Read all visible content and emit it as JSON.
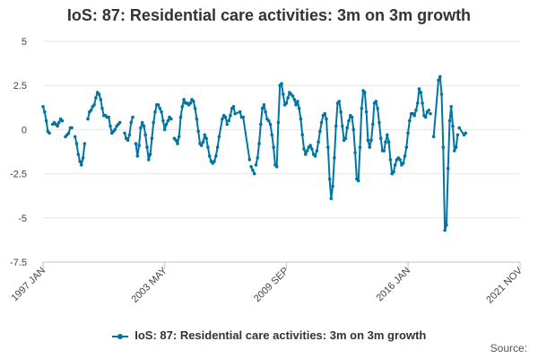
{
  "chart_data": {
    "type": "line",
    "title": "IoS: 87: Residential care activities: 3m on 3m growth",
    "xlabel": "",
    "ylabel": "",
    "ylim": [
      -7.5,
      5
    ],
    "y_ticks": [
      "5",
      "2.5",
      "0",
      "-2.5",
      "-5",
      "-7.5"
    ],
    "y_tick_values": [
      5,
      2.5,
      0,
      -2.5,
      -5,
      -7.5
    ],
    "x_ticks": [
      "1997 JAN",
      "2003 MAY",
      "2009 SEP",
      "2016 JAN",
      "2021 NOV"
    ],
    "x_tick_values": [
      1997.0,
      2003.333,
      2009.667,
      2016.0,
      2021.833
    ],
    "xlim": [
      1997.0,
      2021.833
    ],
    "grid": true,
    "legend": "bottom-center",
    "series": [
      {
        "name": "IoS: 87: Residential care activities: 3m on 3m growth",
        "color": "#0075a3",
        "points": [
          [
            1997.0,
            1.3
          ],
          [
            1997.083,
            1.0
          ],
          [
            1997.167,
            0.5
          ],
          [
            1997.25,
            -0.1
          ],
          [
            1997.333,
            -0.2
          ],
          [
            1997.5,
            0.3
          ],
          [
            1997.583,
            0.4
          ],
          [
            1997.667,
            0.3
          ],
          [
            1997.75,
            0.2
          ],
          [
            1997.833,
            0.4
          ],
          [
            1997.917,
            0.6
          ],
          [
            1998.0,
            0.5
          ],
          [
            1998.167,
            -0.4
          ],
          [
            1998.25,
            -0.3
          ],
          [
            1998.333,
            -0.2
          ],
          [
            1998.417,
            0.1
          ],
          [
            1998.5,
            0.1
          ],
          [
            1998.667,
            -0.4
          ],
          [
            1998.75,
            -0.8
          ],
          [
            1998.833,
            -1.4
          ],
          [
            1998.917,
            -1.8
          ],
          [
            1999.0,
            -2.0
          ],
          [
            1999.083,
            -1.6
          ],
          [
            1999.167,
            -0.8
          ],
          [
            1999.333,
            0.6
          ],
          [
            1999.417,
            1.0
          ],
          [
            1999.5,
            1.1
          ],
          [
            1999.583,
            1.3
          ],
          [
            1999.667,
            1.4
          ],
          [
            1999.75,
            1.8
          ],
          [
            1999.833,
            2.1
          ],
          [
            1999.917,
            2.0
          ],
          [
            2000.0,
            1.7
          ],
          [
            2000.083,
            1.2
          ],
          [
            2000.167,
            0.8
          ],
          [
            2000.25,
            0.8
          ],
          [
            2000.333,
            0.7
          ],
          [
            2000.417,
            0.7
          ],
          [
            2000.5,
            0.2
          ],
          [
            2000.583,
            -0.2
          ],
          [
            2000.667,
            -0.1
          ],
          [
            2000.75,
            0.0
          ],
          [
            2000.833,
            0.2
          ],
          [
            2000.917,
            0.3
          ],
          [
            2001.0,
            0.4
          ],
          [
            2001.25,
            -0.2
          ],
          [
            2001.333,
            -0.5
          ],
          [
            2001.417,
            -0.6
          ],
          [
            2001.5,
            -0.3
          ],
          [
            2001.583,
            0.4
          ],
          [
            2001.667,
            0.7
          ],
          [
            2001.833,
            -0.8
          ],
          [
            2001.917,
            -1.5
          ],
          [
            2002.0,
            -0.9
          ],
          [
            2002.083,
            0.1
          ],
          [
            2002.167,
            0.4
          ],
          [
            2002.25,
            0.2
          ],
          [
            2002.333,
            -0.3
          ],
          [
            2002.417,
            -1.0
          ],
          [
            2002.5,
            -1.7
          ],
          [
            2002.583,
            -1.4
          ],
          [
            2002.667,
            -0.5
          ],
          [
            2002.75,
            0.4
          ],
          [
            2002.833,
            1.0
          ],
          [
            2002.917,
            1.4
          ],
          [
            2003.0,
            1.4
          ],
          [
            2003.083,
            1.2
          ],
          [
            2003.167,
            1.0
          ],
          [
            2003.25,
            0.5
          ],
          [
            2003.333,
            0.0
          ],
          [
            2003.417,
            0.3
          ],
          [
            2003.5,
            0.5
          ],
          [
            2003.583,
            0.7
          ],
          [
            2003.667,
            0.6
          ],
          [
            2003.833,
            -0.5
          ],
          [
            2003.917,
            -0.6
          ],
          [
            2004.0,
            -0.8
          ],
          [
            2004.083,
            -0.4
          ],
          [
            2004.167,
            0.7
          ],
          [
            2004.25,
            1.3
          ],
          [
            2004.333,
            1.7
          ],
          [
            2004.417,
            1.5
          ],
          [
            2004.5,
            1.5
          ],
          [
            2004.583,
            1.4
          ],
          [
            2004.667,
            1.5
          ],
          [
            2004.75,
            1.7
          ],
          [
            2004.833,
            1.6
          ],
          [
            2004.917,
            1.2
          ],
          [
            2005.0,
            0.6
          ],
          [
            2005.083,
            -0.1
          ],
          [
            2005.167,
            -0.8
          ],
          [
            2005.25,
            -0.9
          ],
          [
            2005.333,
            -0.7
          ],
          [
            2005.417,
            -0.3
          ],
          [
            2005.5,
            -0.5
          ],
          [
            2005.583,
            -1.0
          ],
          [
            2005.667,
            -1.5
          ],
          [
            2005.75,
            -1.8
          ],
          [
            2005.833,
            -1.9
          ],
          [
            2005.917,
            -1.8
          ],
          [
            2006.0,
            -1.5
          ],
          [
            2006.083,
            -1.0
          ],
          [
            2006.167,
            -0.4
          ],
          [
            2006.333,
            0.6
          ],
          [
            2006.417,
            0.8
          ],
          [
            2006.5,
            0.7
          ],
          [
            2006.583,
            0.3
          ],
          [
            2006.667,
            0.5
          ],
          [
            2006.75,
            0.8
          ],
          [
            2006.833,
            1.2
          ],
          [
            2006.917,
            1.3
          ],
          [
            2007.0,
            0.9
          ],
          [
            2007.25,
            1.0
          ],
          [
            2007.333,
            0.7
          ],
          [
            2007.417,
            0.7
          ],
          [
            2007.75,
            -1.7
          ],
          [
            2007.833,
            -2.1
          ],
          [
            2007.917,
            -2.3
          ],
          [
            2008.0,
            -2.5
          ],
          [
            2008.083,
            -2.0
          ],
          [
            2008.167,
            -1.6
          ],
          [
            2008.25,
            -0.8
          ],
          [
            2008.333,
            0.3
          ],
          [
            2008.417,
            1.2
          ],
          [
            2008.5,
            1.4
          ],
          [
            2008.583,
            1.0
          ],
          [
            2008.667,
            0.6
          ],
          [
            2008.75,
            0.5
          ],
          [
            2008.833,
            0.3
          ],
          [
            2008.917,
            -0.3
          ],
          [
            2009.0,
            -1.0
          ],
          [
            2009.083,
            -2.0
          ],
          [
            2009.167,
            -2.1
          ],
          [
            2009.25,
            0.4
          ],
          [
            2009.333,
            2.5
          ],
          [
            2009.417,
            2.6
          ],
          [
            2009.5,
            2.0
          ],
          [
            2009.583,
            1.4
          ],
          [
            2009.667,
            1.5
          ],
          [
            2009.75,
            1.8
          ],
          [
            2009.833,
            2.1
          ],
          [
            2009.917,
            2.0
          ],
          [
            2010.0,
            1.9
          ],
          [
            2010.083,
            1.7
          ],
          [
            2010.167,
            1.4
          ],
          [
            2010.25,
            1.6
          ],
          [
            2010.333,
            1.2
          ],
          [
            2010.417,
            0.6
          ],
          [
            2010.5,
            -0.3
          ],
          [
            2010.583,
            -1.1
          ],
          [
            2010.667,
            -1.4
          ],
          [
            2010.75,
            -1.2
          ],
          [
            2010.833,
            -1.0
          ],
          [
            2010.917,
            -0.9
          ],
          [
            2011.0,
            -1.1
          ],
          [
            2011.083,
            -1.4
          ],
          [
            2011.167,
            -1.5
          ],
          [
            2011.25,
            -1.2
          ],
          [
            2011.333,
            -0.7
          ],
          [
            2011.417,
            -0.1
          ],
          [
            2011.5,
            0.4
          ],
          [
            2011.583,
            0.8
          ],
          [
            2011.667,
            0.9
          ],
          [
            2011.75,
            0.6
          ],
          [
            2011.833,
            -1.0
          ],
          [
            2011.917,
            -2.8
          ],
          [
            2012.0,
            -3.9
          ],
          [
            2012.083,
            -3.2
          ],
          [
            2012.167,
            -1.6
          ],
          [
            2012.25,
            0.2
          ],
          [
            2012.333,
            1.5
          ],
          [
            2012.417,
            1.6
          ],
          [
            2012.5,
            1.0
          ],
          [
            2012.583,
            0.2
          ],
          [
            2012.667,
            -0.6
          ],
          [
            2012.75,
            -0.5
          ],
          [
            2012.833,
            0.1
          ],
          [
            2012.917,
            0.5
          ],
          [
            2013.0,
            0.8
          ],
          [
            2013.083,
            0.7
          ],
          [
            2013.167,
            0.0
          ],
          [
            2013.25,
            -1.3
          ],
          [
            2013.333,
            -2.8
          ],
          [
            2013.417,
            -2.9
          ],
          [
            2013.5,
            -1.0
          ],
          [
            2013.583,
            1.2
          ],
          [
            2013.667,
            2.2
          ],
          [
            2013.75,
            2.1
          ],
          [
            2013.833,
            1.0
          ],
          [
            2013.917,
            -0.6
          ],
          [
            2014.0,
            -1.0
          ],
          [
            2014.083,
            -0.6
          ],
          [
            2014.167,
            0.3
          ],
          [
            2014.25,
            1.5
          ],
          [
            2014.333,
            1.6
          ],
          [
            2014.417,
            1.2
          ],
          [
            2014.5,
            0.4
          ],
          [
            2014.583,
            -0.5
          ],
          [
            2014.667,
            -1.2
          ],
          [
            2014.75,
            -1.2
          ],
          [
            2014.833,
            -0.7
          ],
          [
            2014.917,
            -0.3
          ],
          [
            2015.0,
            -0.7
          ],
          [
            2015.083,
            -1.7
          ],
          [
            2015.167,
            -2.5
          ],
          [
            2015.25,
            -2.4
          ],
          [
            2015.333,
            -2.0
          ],
          [
            2015.417,
            -1.7
          ],
          [
            2015.5,
            -1.6
          ],
          [
            2015.583,
            -1.7
          ],
          [
            2015.667,
            -2.0
          ],
          [
            2015.75,
            -1.9
          ],
          [
            2015.833,
            -1.5
          ],
          [
            2015.917,
            -1.0
          ],
          [
            2016.0,
            -0.2
          ],
          [
            2016.083,
            0.5
          ],
          [
            2016.167,
            0.9
          ],
          [
            2016.25,
            0.9
          ],
          [
            2016.333,
            0.8
          ],
          [
            2016.417,
            1.1
          ],
          [
            2016.5,
            1.5
          ],
          [
            2016.583,
            2.3
          ],
          [
            2016.667,
            2.1
          ],
          [
            2016.75,
            1.5
          ],
          [
            2016.833,
            0.8
          ],
          [
            2016.917,
            0.7
          ],
          [
            2017.0,
            1.0
          ],
          [
            2017.083,
            1.1
          ],
          [
            2017.167,
            0.9
          ],
          [
            2017.333,
            -0.4
          ],
          [
            2017.583,
            2.8
          ],
          [
            2017.667,
            3.0
          ],
          [
            2017.75,
            2.0
          ],
          [
            2017.833,
            -1.0
          ],
          [
            2017.917,
            -5.7
          ],
          [
            2018.0,
            -5.4
          ],
          [
            2018.083,
            -2.2
          ],
          [
            2018.167,
            0.5
          ],
          [
            2018.25,
            1.3
          ],
          [
            2018.333,
            0.2
          ],
          [
            2018.417,
            -1.2
          ],
          [
            2018.5,
            -1.0
          ],
          [
            2018.583,
            -0.3
          ],
          [
            2018.667,
            0.1
          ],
          [
            2018.917,
            -0.3
          ],
          [
            2019.0,
            -0.2
          ]
        ],
        "gaps_after_index": [
          4,
          11,
          16,
          23,
          44,
          50,
          73,
          106,
          115,
          118,
          227,
          228,
          242
        ]
      }
    ]
  },
  "legend_label": "IoS: 87: Residential care activities: 3m on 3m growth",
  "credits_label": "Source:"
}
